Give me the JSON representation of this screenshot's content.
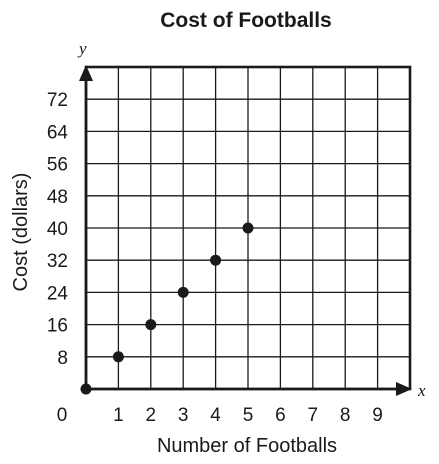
{
  "chart_data": {
    "type": "scatter",
    "title": "Cost of Footballs",
    "xlabel": "Number of Footballs",
    "ylabel": "Cost (dollars)",
    "x_axis_letter": "x",
    "y_axis_letter": "y",
    "origin_label": "0",
    "xlim": [
      0,
      10
    ],
    "ylim": [
      0,
      80
    ],
    "x_ticks": [
      1,
      2,
      3,
      4,
      5,
      6,
      7,
      8,
      9
    ],
    "y_ticks": [
      8,
      16,
      24,
      32,
      40,
      48,
      56,
      64,
      72
    ],
    "grid": true,
    "points": [
      {
        "x": 0,
        "y": 0
      },
      {
        "x": 1,
        "y": 8
      },
      {
        "x": 2,
        "y": 16
      },
      {
        "x": 3,
        "y": 24
      },
      {
        "x": 4,
        "y": 32
      },
      {
        "x": 5,
        "y": 40
      }
    ]
  }
}
